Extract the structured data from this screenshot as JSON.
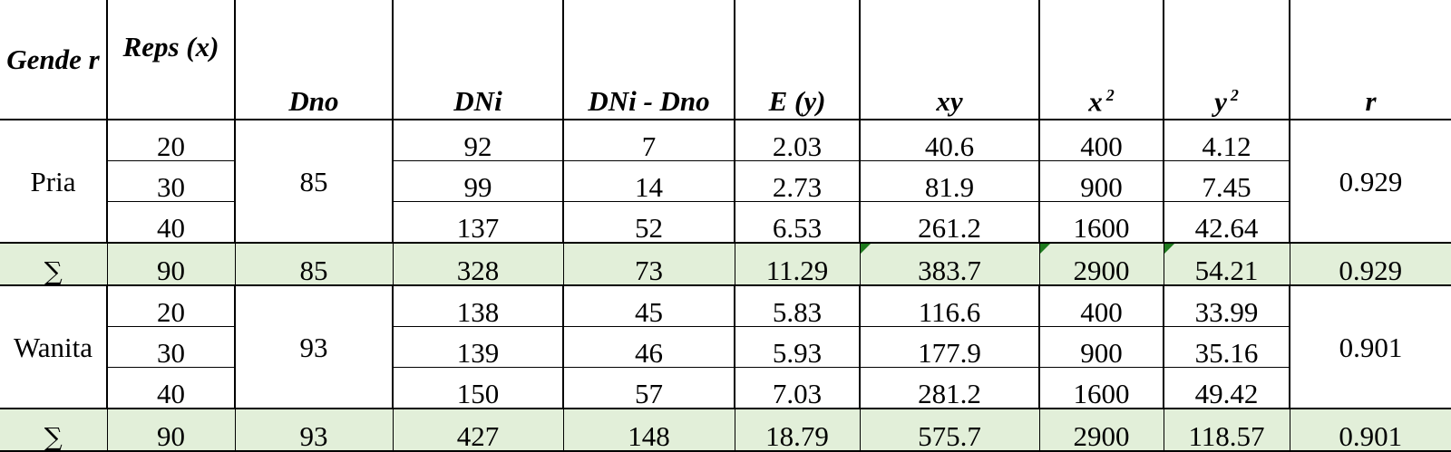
{
  "headers": [
    "Gende r",
    "Reps (x)",
    "Dno",
    "DNi",
    "DNi - Dno",
    "E (y)",
    "xy",
    "x",
    "y",
    "r"
  ],
  "header_superscripts": {
    "x2": "2",
    "y2": "2"
  },
  "sum_symbol": "∑",
  "groups": [
    {
      "gender": "Pria",
      "dno": "85",
      "r": "0.929",
      "rows": [
        {
          "reps": "20",
          "dni": "92",
          "diff": "7",
          "e": "2.03",
          "xy": "40.6",
          "x2": "400",
          "y2": "4.12"
        },
        {
          "reps": "30",
          "dni": "99",
          "diff": "14",
          "e": "2.73",
          "xy": "81.9",
          "x2": "900",
          "y2": "7.45"
        },
        {
          "reps": "40",
          "dni": "137",
          "diff": "52",
          "e": "6.53",
          "xy": "261.2",
          "x2": "1600",
          "y2": "42.64"
        }
      ],
      "sum": {
        "reps": "90",
        "dno": "85",
        "dni": "328",
        "diff": "73",
        "e": "11.29",
        "xy": "383.7",
        "x2": "2900",
        "y2": "54.21",
        "r": "0.929"
      }
    },
    {
      "gender": "Wanita",
      "dno": "93",
      "r": "0.901",
      "rows": [
        {
          "reps": "20",
          "dni": "138",
          "diff": "45",
          "e": "5.83",
          "xy": "116.6",
          "x2": "400",
          "y2": "33.99"
        },
        {
          "reps": "30",
          "dni": "139",
          "diff": "46",
          "e": "5.93",
          "xy": "177.9",
          "x2": "900",
          "y2": "35.16"
        },
        {
          "reps": "40",
          "dni": "150",
          "diff": "57",
          "e": "7.03",
          "xy": "281.2",
          "x2": "1600",
          "y2": "49.42"
        }
      ],
      "sum": {
        "reps": "90",
        "dno": "93",
        "dni": "427",
        "diff": "148",
        "e": "18.79",
        "xy": "575.7",
        "x2": "2900",
        "y2": "118.57",
        "r": "0.901"
      }
    }
  ],
  "colors": {
    "sum_fill": "#e2efd9",
    "indicator": "#1e7a1e"
  }
}
